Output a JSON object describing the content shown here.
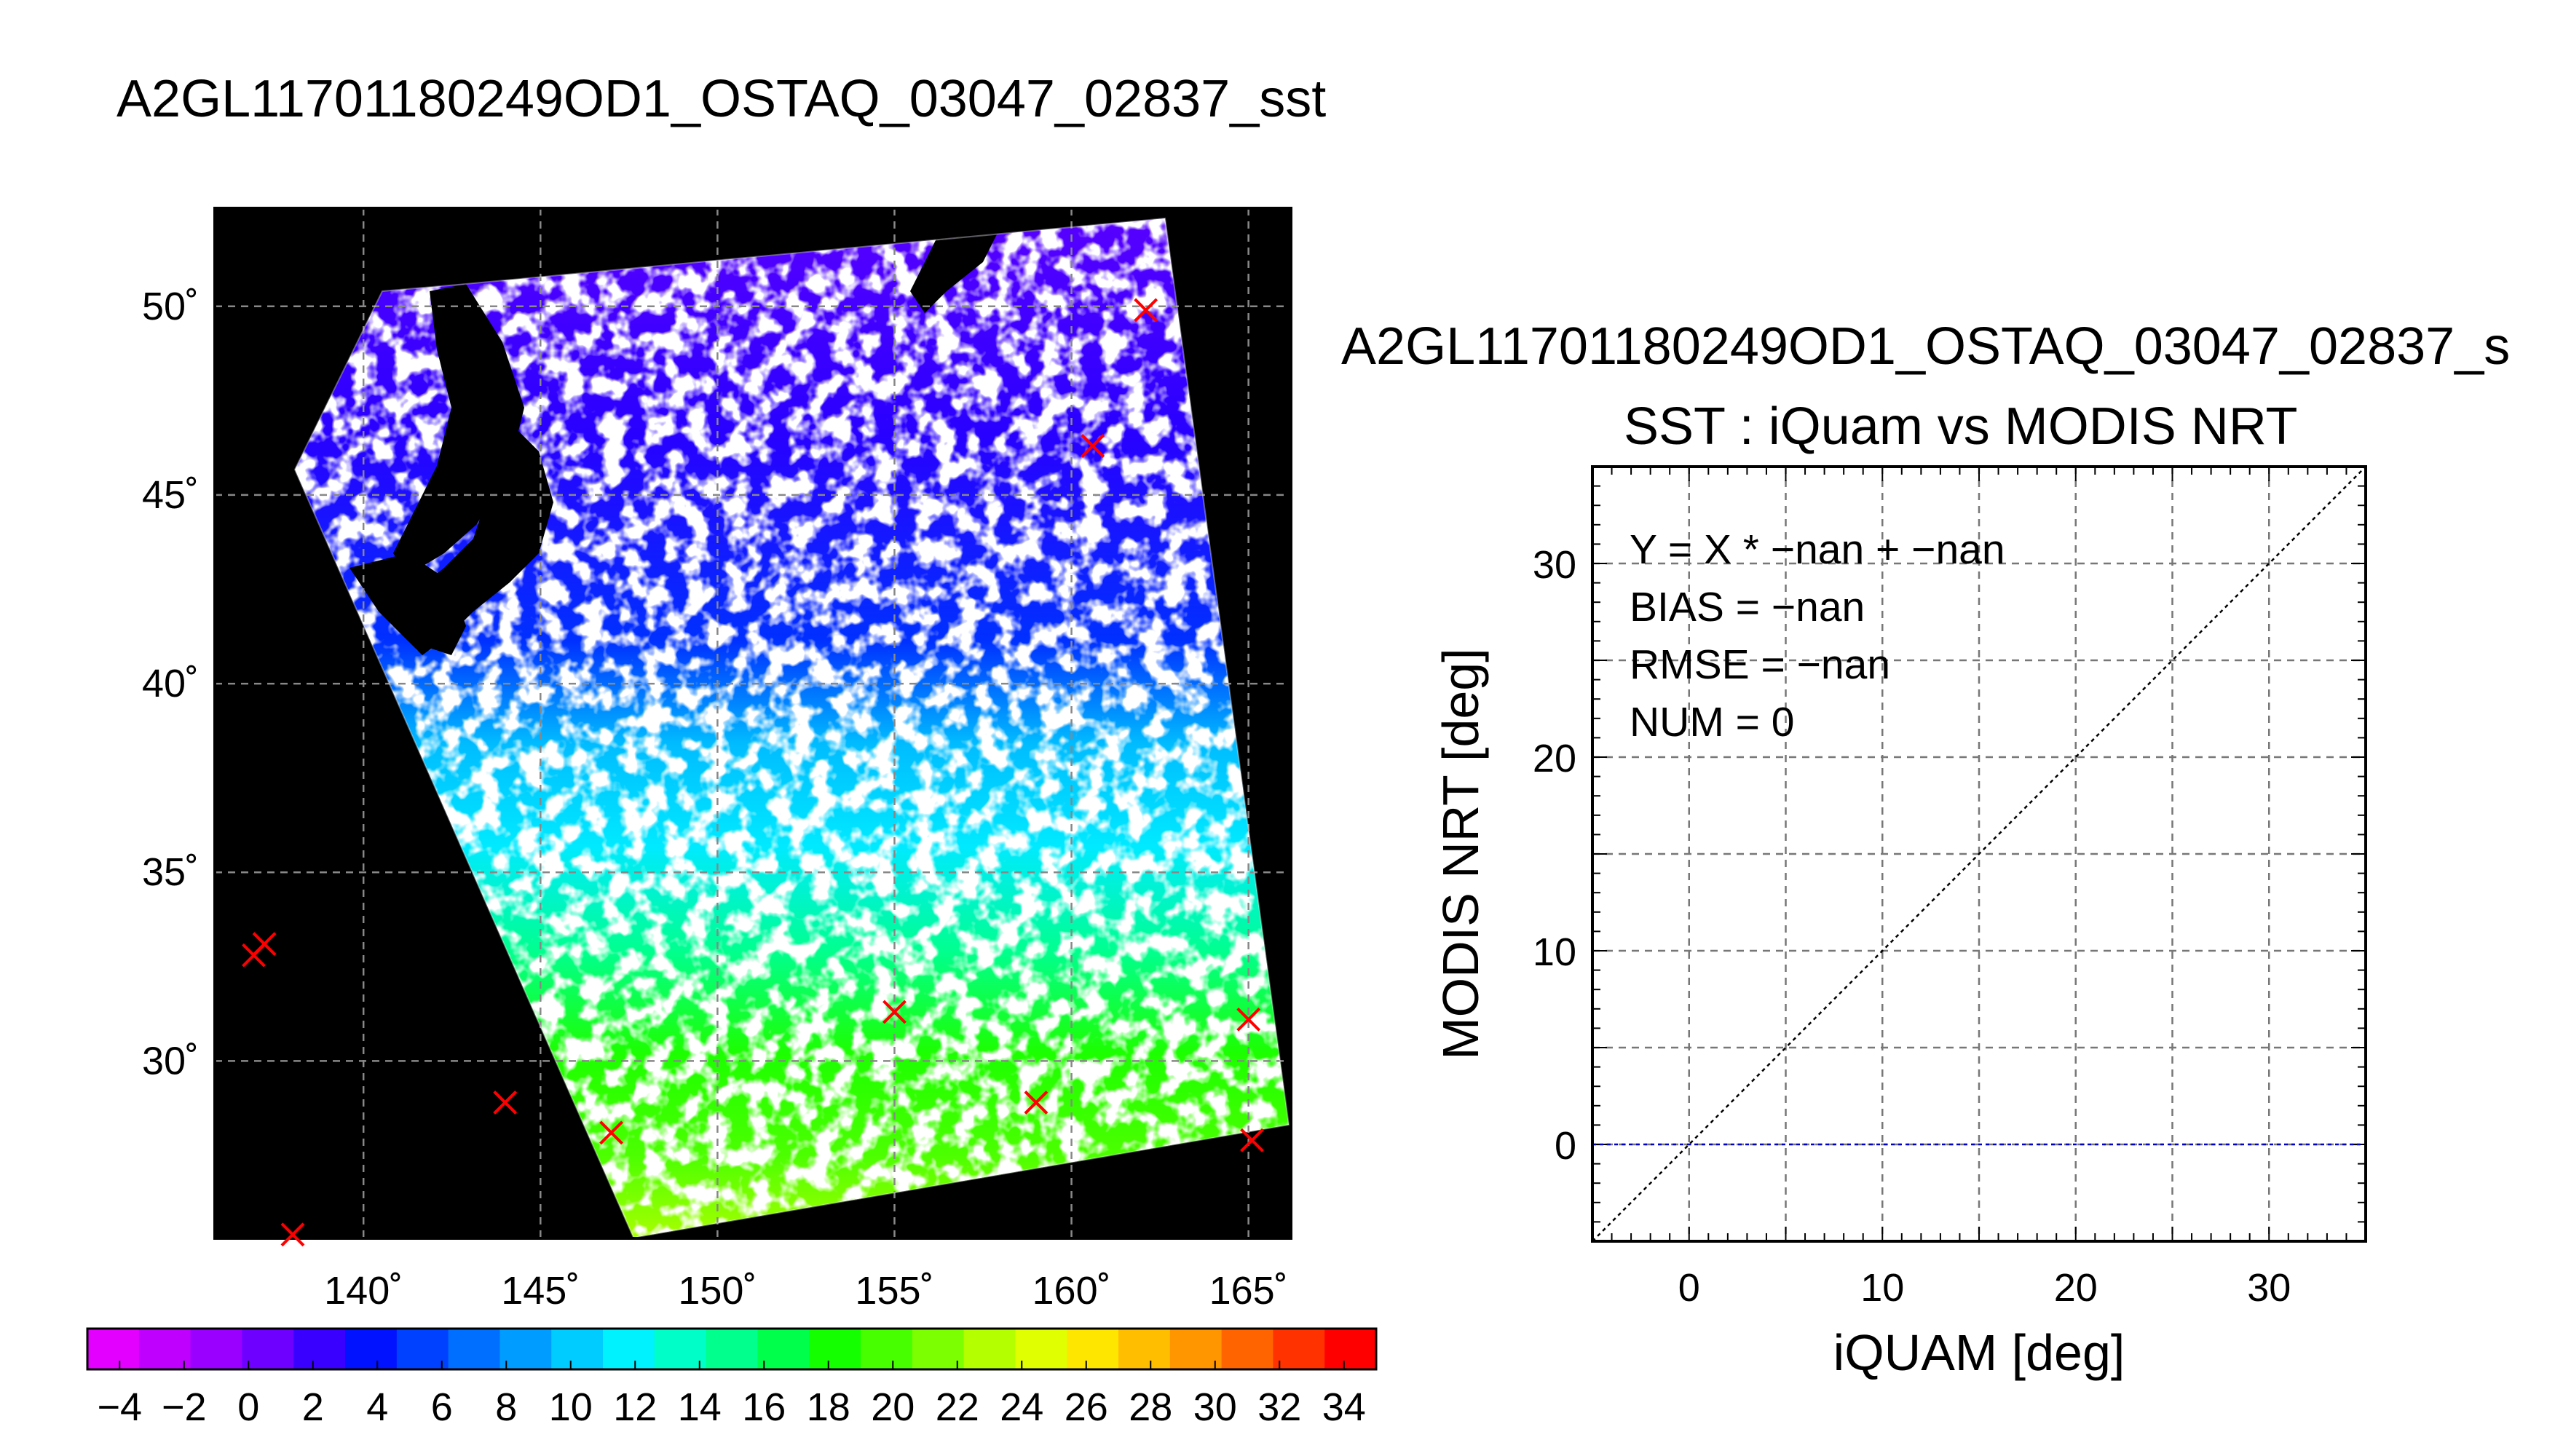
{
  "main_title": "A2GL11701180249OD1_OSTAQ_03047_02837_sst",
  "colorbar": {
    "ticks": [
      "−4",
      "−2",
      "0",
      "2",
      "4",
      "6",
      "8",
      "10",
      "12",
      "14",
      "16",
      "18",
      "20",
      "22",
      "24",
      "26",
      "28",
      "30",
      "32",
      "34"
    ],
    "colors": [
      "#e400ff",
      "#c000ff",
      "#9a00ff",
      "#6e00ff",
      "#3a00ff",
      "#0012ff",
      "#0040ff",
      "#006eff",
      "#009cff",
      "#00ccff",
      "#00f2ff",
      "#00ffc8",
      "#00ff8c",
      "#00ff4a",
      "#14ff00",
      "#48ff00",
      "#7cff00",
      "#b4ff00",
      "#e0ff00",
      "#ffe600",
      "#ffbe00",
      "#ff9600",
      "#ff6400",
      "#ff3200",
      "#ff0000"
    ]
  },
  "map": {
    "lon_labels": [
      "140˚",
      "145˚",
      "150˚",
      "155˚",
      "160˚",
      "165˚"
    ],
    "lat_labels": [
      "50˚",
      "45˚",
      "40˚",
      "35˚",
      "30˚"
    ]
  },
  "scatter": {
    "title": "A2GL11701180249OD1_OSTAQ_03047_02837_s",
    "subtitle": "SST : iQuam vs MODIS NRT",
    "stats": [
      "Y = X * −nan + −nan",
      "BIAS = −nan",
      "RMSE = −nan",
      "NUM = 0"
    ]
  },
  "chart_data": [
    {
      "type": "heatmap",
      "title": "A2GL11701180249OD1_OSTAQ_03047_02837_sst",
      "xlabel": "",
      "ylabel": "",
      "xlim": [
        135.8,
        166.2
      ],
      "ylim": [
        25.3,
        52.6
      ],
      "x_ticks": [
        140,
        145,
        150,
        155,
        160,
        165
      ],
      "y_ticks": [
        30,
        35,
        40,
        45,
        50
      ],
      "grid": true,
      "colorbar_range": [
        -5,
        35
      ],
      "colorbar_ticks": [
        -4,
        -2,
        0,
        2,
        4,
        6,
        8,
        10,
        12,
        14,
        16,
        18,
        20,
        22,
        24,
        26,
        28,
        30,
        32,
        34
      ],
      "markers": [
        {
          "lon": 162.1,
          "lat": 49.9
        },
        {
          "lon": 160.6,
          "lat": 46.3
        },
        {
          "lon": 137.2,
          "lat": 33.1
        },
        {
          "lon": 136.9,
          "lat": 32.8
        },
        {
          "lon": 155.0,
          "lat": 31.3
        },
        {
          "lon": 165.0,
          "lat": 31.1
        },
        {
          "lon": 144.0,
          "lat": 28.9
        },
        {
          "lon": 159.0,
          "lat": 28.9
        },
        {
          "lon": 147.0,
          "lat": 28.1
        },
        {
          "lon": 165.1,
          "lat": 27.9
        },
        {
          "lon": 138.0,
          "lat": 25.4
        }
      ]
    },
    {
      "type": "scatter",
      "title": "SST : iQuam vs MODIS NRT",
      "xlabel": "iQUAM [deg]",
      "ylabel": "MODIS NRT [deg]",
      "xlim": [
        -5,
        35
      ],
      "ylim": [
        -5,
        35
      ],
      "x_ticks": [
        0,
        10,
        20,
        30
      ],
      "y_ticks": [
        0,
        10,
        20,
        30
      ],
      "grid": true,
      "series": [],
      "reference_lines": [
        {
          "kind": "identity",
          "from": [
            -5,
            -5
          ],
          "to": [
            35,
            35
          ],
          "color": "#000000"
        },
        {
          "kind": "horizontal",
          "y": 0,
          "color": "#0000c8"
        }
      ]
    }
  ]
}
